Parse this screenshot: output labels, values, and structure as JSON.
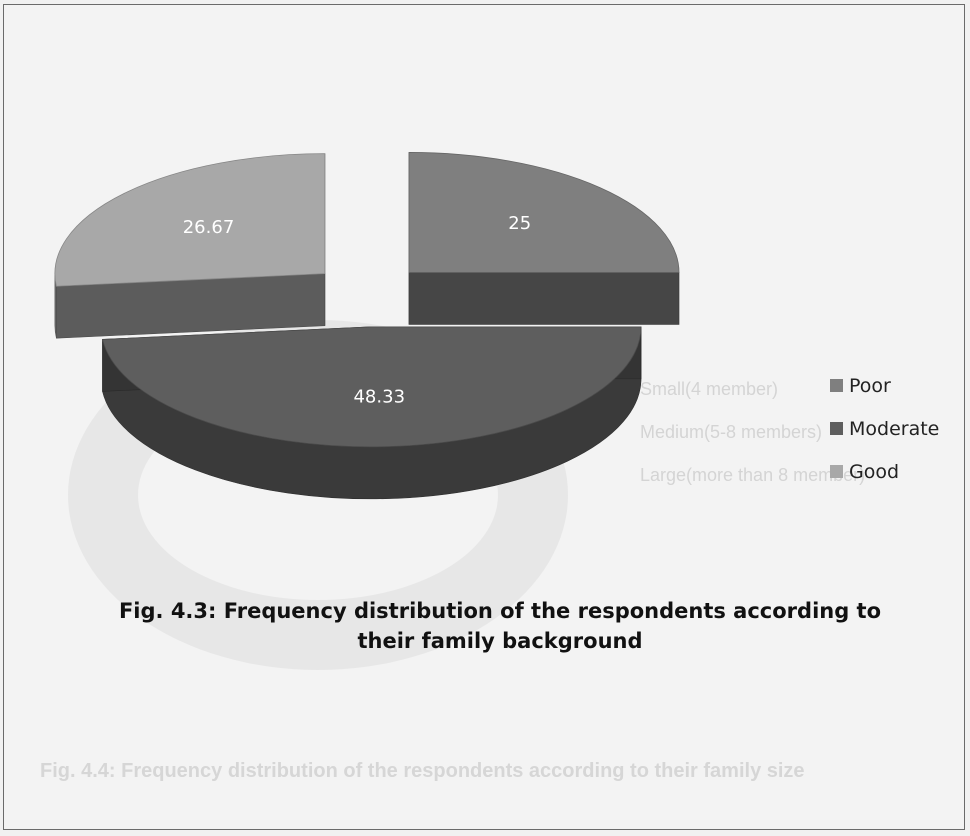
{
  "caption": "Fig. 4.3: Frequency distribution of the respondents according to their family background",
  "chart_data": {
    "type": "pie",
    "title": "",
    "categories": [
      "Poor",
      "Moderate",
      "Good"
    ],
    "values": [
      25,
      48.33,
      26.67
    ],
    "colors": [
      "#7f7f7f",
      "#5e5e5e",
      "#a8a8a8"
    ],
    "legend_position": "right"
  },
  "ghost": {
    "legend": [
      "Small(4 member)",
      "Medium(5-8 members)",
      "Large(more than 8 member)"
    ],
    "caption": "Fig. 4.4: Frequency distribution of the respondents according to their family size"
  }
}
